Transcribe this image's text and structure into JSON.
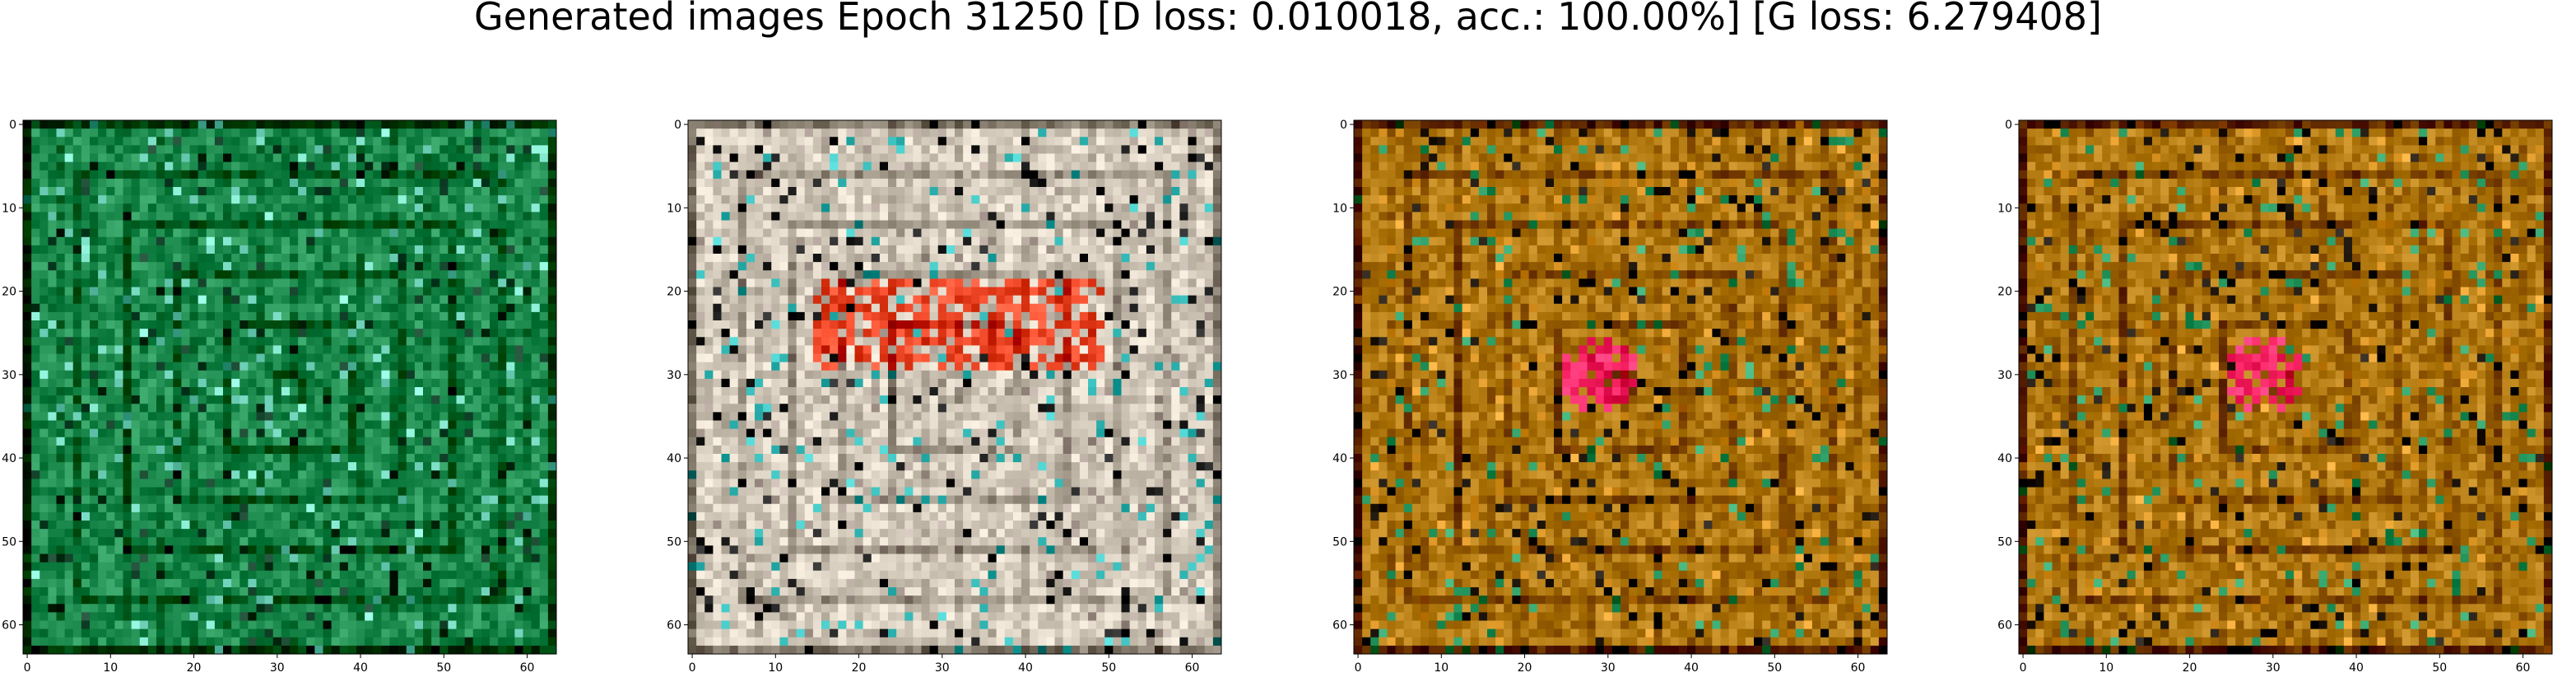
{
  "title": "Generated images Epoch 31250 [D loss: 0.010018, acc.: 100.00%] [G loss: 6.279408]",
  "chart_data": [
    {
      "type": "heatmap",
      "grid_size": [
        64,
        64
      ],
      "xlim": [
        0,
        63
      ],
      "ylim": [
        63,
        0
      ],
      "x_ticks": [
        "0",
        "10",
        "20",
        "30",
        "40",
        "50",
        "60"
      ],
      "y_ticks": [
        "0",
        "10",
        "20",
        "30",
        "40",
        "50",
        "60"
      ],
      "base_color": "#1d8a4e",
      "accent_colors": [
        "#35c9b0",
        "#0b3a22",
        "#7fe0c8"
      ],
      "grid": false
    },
    {
      "type": "heatmap",
      "grid_size": [
        64,
        64
      ],
      "xlim": [
        0,
        63
      ],
      "ylim": [
        63,
        0
      ],
      "x_ticks": [
        "0",
        "10",
        "20",
        "30",
        "40",
        "50",
        "60"
      ],
      "y_ticks": [
        "0",
        "10",
        "20",
        "30",
        "40",
        "50",
        "60"
      ],
      "base_color": "#d8cfc0",
      "accent_colors": [
        "#f04a2a",
        "#1a1a1a",
        "#3fc3c0",
        "#b8aaa0"
      ],
      "grid": false
    },
    {
      "type": "heatmap",
      "grid_size": [
        64,
        64
      ],
      "xlim": [
        0,
        63
      ],
      "ylim": [
        63,
        0
      ],
      "x_ticks": [
        "0",
        "10",
        "20",
        "30",
        "40",
        "50",
        "60"
      ],
      "y_ticks": [
        "0",
        "10",
        "20",
        "30",
        "40",
        "50",
        "60"
      ],
      "base_color": "#b0780f",
      "accent_colors": [
        "#ff2a6a",
        "#1a1208",
        "#2fa068",
        "#e09a2a"
      ],
      "grid": false
    },
    {
      "type": "heatmap",
      "grid_size": [
        64,
        64
      ],
      "xlim": [
        0,
        63
      ],
      "ylim": [
        63,
        0
      ],
      "x_ticks": [
        "0",
        "10",
        "20",
        "30",
        "40",
        "50",
        "60"
      ],
      "y_ticks": [
        "0",
        "10",
        "20",
        "30",
        "40",
        "50",
        "60"
      ],
      "base_color": "#b0780f",
      "accent_colors": [
        "#ff2a6a",
        "#1a1208",
        "#2fa068",
        "#e09a2a"
      ],
      "grid": false
    }
  ]
}
